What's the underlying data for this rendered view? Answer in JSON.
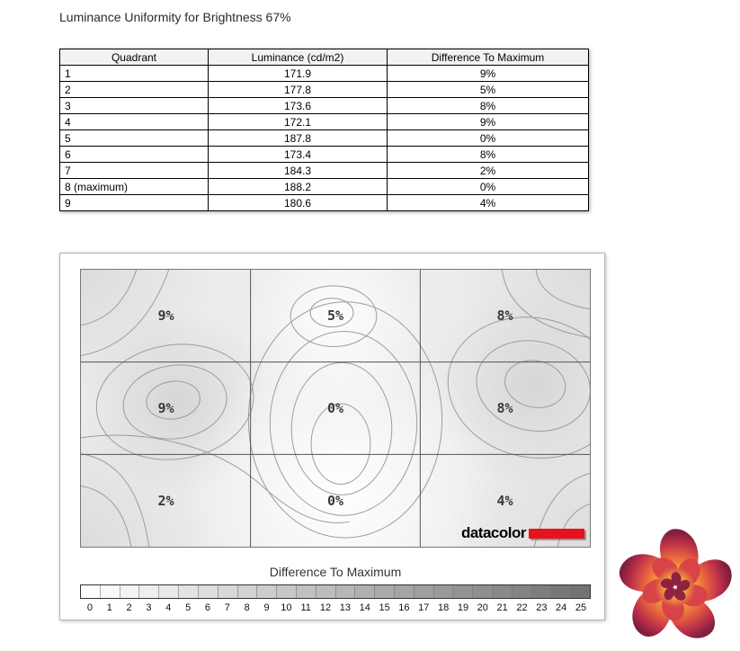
{
  "title": "Luminance Uniformity for Brightness 67%",
  "table": {
    "headers": [
      "Quadrant",
      "Luminance (cd/m2)",
      "Difference To Maximum"
    ],
    "rows": [
      [
        "1",
        "171.9",
        "9%"
      ],
      [
        "2",
        "177.8",
        "5%"
      ],
      [
        "3",
        "173.6",
        "8%"
      ],
      [
        "4",
        "172.1",
        "9%"
      ],
      [
        "5",
        "187.8",
        "0%"
      ],
      [
        "6",
        "173.4",
        "8%"
      ],
      [
        "7",
        "184.3",
        "2%"
      ],
      [
        "8 (maximum)",
        "188.2",
        "0%"
      ],
      [
        "9",
        "180.6",
        "4%"
      ]
    ]
  },
  "chart_data": {
    "type": "heatmap",
    "title": "Luminance Uniformity for Brightness 67%",
    "grid_labels": [
      [
        "9%",
        "5%",
        "8%"
      ],
      [
        "9%",
        "0%",
        "8%"
      ],
      [
        "2%",
        "0%",
        "4%"
      ]
    ],
    "quadrant_values": [
      {
        "quadrant": 1,
        "luminance_cd_m2": 171.9,
        "difference_to_maximum_pct": 9
      },
      {
        "quadrant": 2,
        "luminance_cd_m2": 177.8,
        "difference_to_maximum_pct": 5
      },
      {
        "quadrant": 3,
        "luminance_cd_m2": 173.6,
        "difference_to_maximum_pct": 8
      },
      {
        "quadrant": 4,
        "luminance_cd_m2": 172.1,
        "difference_to_maximum_pct": 9
      },
      {
        "quadrant": 5,
        "luminance_cd_m2": 187.8,
        "difference_to_maximum_pct": 0
      },
      {
        "quadrant": 6,
        "luminance_cd_m2": 173.4,
        "difference_to_maximum_pct": 8
      },
      {
        "quadrant": 7,
        "luminance_cd_m2": 184.3,
        "difference_to_maximum_pct": 2
      },
      {
        "quadrant": 8,
        "luminance_cd_m2": 188.2,
        "difference_to_maximum_pct": 0
      },
      {
        "quadrant": 9,
        "luminance_cd_m2": 180.6,
        "difference_to_maximum_pct": 4
      }
    ],
    "colorbar": {
      "label": "Difference To Maximum",
      "min": 0,
      "max": 25,
      "ticks": [
        "0",
        "1",
        "2",
        "3",
        "4",
        "5",
        "6",
        "7",
        "8",
        "9",
        "10",
        "11",
        "12",
        "13",
        "14",
        "15",
        "16",
        "17",
        "18",
        "19",
        "20",
        "21",
        "22",
        "23",
        "24",
        "25"
      ]
    }
  },
  "branding": {
    "datacolor_text": "datacolor"
  }
}
